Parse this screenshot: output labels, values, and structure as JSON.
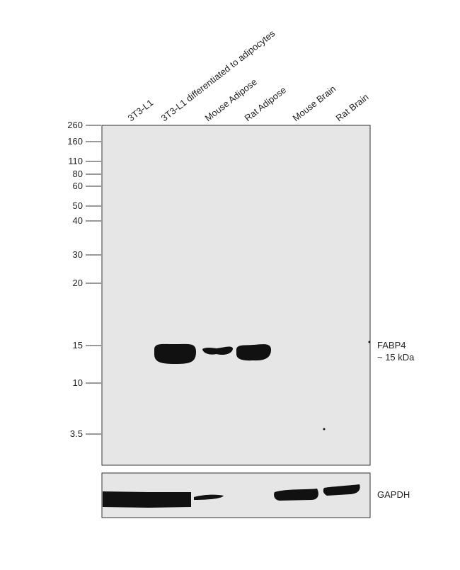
{
  "lanes": [
    "3T3-L1",
    "3T3-L1 differentiated to adipocytes",
    "Mouse Adipose",
    "Rat Adipose",
    "Mouse Brain",
    "Rat Brain"
  ],
  "markers": [
    "260",
    "160",
    "110",
    "80",
    "60",
    "50",
    "40",
    "30",
    "20",
    "15",
    "10",
    "3.5"
  ],
  "bands": {
    "target": {
      "name": "FABP4",
      "size": "~ 15 kDa"
    },
    "control": {
      "name": "GAPDH"
    }
  }
}
